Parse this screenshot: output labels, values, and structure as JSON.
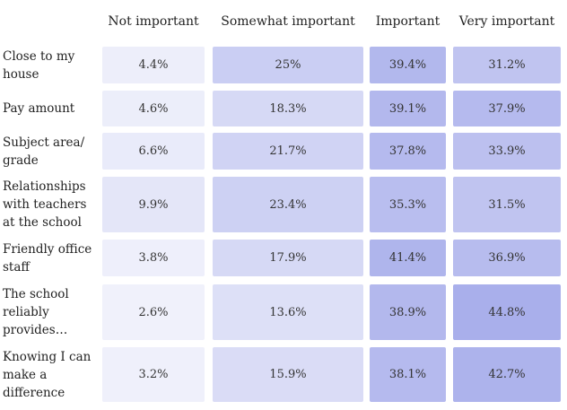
{
  "chart_data": {
    "type": "heatmap",
    "columns": [
      "Not important",
      "Somewhat important",
      "Important",
      "Very important"
    ],
    "rows": [
      {
        "label": "Close to my house",
        "values": [
          4.4,
          25,
          39.4,
          31.2
        ],
        "display": [
          "4.4%",
          "25%",
          "39.4%",
          "31.2%"
        ]
      },
      {
        "label": "Pay amount",
        "values": [
          4.6,
          18.3,
          39.1,
          37.9
        ],
        "display": [
          "4.6%",
          "18.3%",
          "39.1%",
          "37.9%"
        ]
      },
      {
        "label": "Subject area/ grade",
        "values": [
          6.6,
          21.7,
          37.8,
          33.9
        ],
        "display": [
          "6.6%",
          "21.7%",
          "37.8%",
          "33.9%"
        ]
      },
      {
        "label": "Relationships with teachers at the school",
        "values": [
          9.9,
          23.4,
          35.3,
          31.5
        ],
        "display": [
          "9.9%",
          "23.4%",
          "35.3%",
          "31.5%"
        ]
      },
      {
        "label": "Friendly office staff",
        "values": [
          3.8,
          17.9,
          41.4,
          36.9
        ],
        "display": [
          "3.8%",
          "17.9%",
          "41.4%",
          "36.9%"
        ]
      },
      {
        "label": "The school reliably provides…",
        "values": [
          2.6,
          13.6,
          38.9,
          44.8
        ],
        "display": [
          "2.6%",
          "13.6%",
          "38.9%",
          "44.8%"
        ]
      },
      {
        "label": "Knowing I can make a difference",
        "values": [
          3.2,
          15.9,
          38.1,
          42.7
        ],
        "display": [
          "3.2%",
          "15.9%",
          "38.1%",
          "42.7%"
        ]
      }
    ],
    "color_low": "#f4f5fc",
    "color_high": "#a9afeb",
    "value_range": [
      0,
      45
    ]
  }
}
